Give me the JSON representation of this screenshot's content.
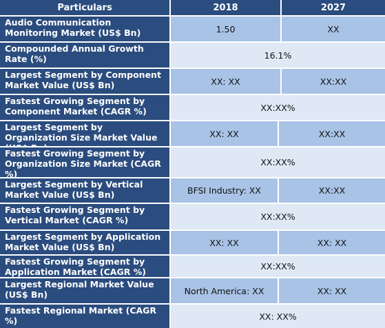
{
  "header": {
    "particulars": "Particulars",
    "col_2018": "2018",
    "col_2027": "2027"
  },
  "rows": [
    {
      "label": "Audio Communication Monitoring Market (US$ Bn)",
      "v2018": "1.50",
      "v2027": "XX"
    },
    {
      "label": "Compounded Annual Growth Rate (%)",
      "merged": "16.1%"
    },
    {
      "label": "Largest Segment by Component Market Value (US$ Bn)",
      "v2018": "XX: XX",
      "v2027": "XX:XX"
    },
    {
      "label": "Fastest Growing Segment by Component Market (CAGR %)",
      "merged": "XX:XX%"
    },
    {
      "label": "Largest Segment by Organization Size Market Value (US$ Bn)",
      "v2018": "XX: XX",
      "v2027": "XX:XX"
    },
    {
      "label": "Fastest Growing Segment by Organization Size Market (CAGR %)",
      "merged": "XX:XX%"
    },
    {
      "label": "Largest Segment by Vertical Market Value (US$ Bn)",
      "v2018": "BFSI Industry: XX",
      "v2027": "XX:XX"
    },
    {
      "label": "Fastest Growing Segment by Vertical Market (CAGR %)",
      "merged": "XX:XX%"
    },
    {
      "label": "Largest Segment by Application Market Value (US$ Bn)",
      "v2018": "XX: XX",
      "v2027": "XX: XX"
    },
    {
      "label": "Fastest Growing Segment by Application Market (CAGR %)",
      "merged": "XX:XX%"
    },
    {
      "label": "Largest Regional Market Value (US$ Bn)",
      "v2018": "North America: XX",
      "v2027": "XX: XX"
    },
    {
      "label": "Fastest Regional Market (CAGR %)",
      "merged": "XX: XX%"
    }
  ]
}
